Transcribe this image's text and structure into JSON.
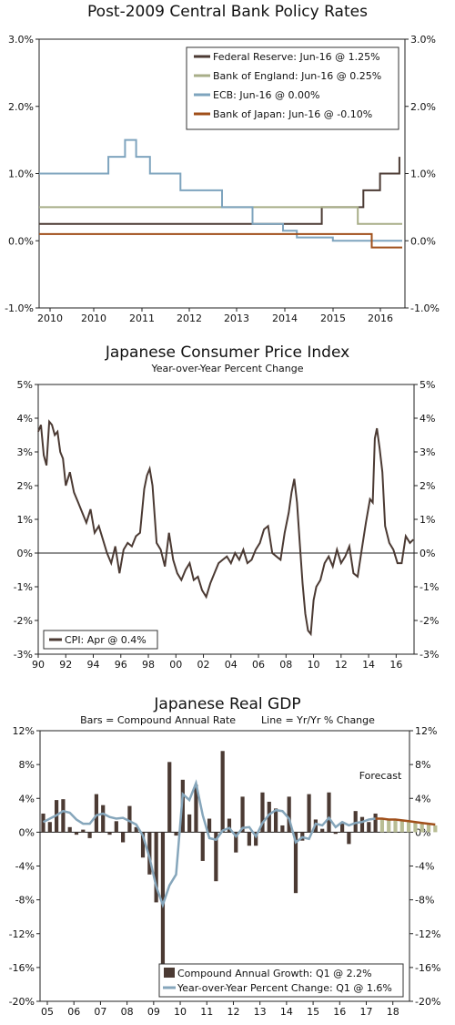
{
  "chart_data": [
    {
      "type": "line",
      "title": "Post-2009 Central Bank Policy Rates",
      "x_range": [
        2010,
        2016.6
      ],
      "x_ticks": [
        "2010",
        "2010",
        "2011",
        "2012",
        "2013",
        "2014",
        "2015",
        "2016"
      ],
      "ylim": [
        -1.0,
        3.0
      ],
      "y_ticks_left": [
        "3.0%",
        "2.0%",
        "1.0%",
        "0.0%",
        "-1.0%"
      ],
      "y_ticks_right": [
        "3.0%",
        "2.0%",
        "1.0%",
        "0.0%",
        "-1.0%"
      ],
      "legend_position": "top-right",
      "series": [
        {
          "name": "Federal Reserve: Jun-16 @ 1.25%",
          "color": "#4b3a33",
          "x": [
            2010,
            2015.1,
            2015.1,
            2015.55,
            2015.55,
            2015.85,
            2015.85,
            2016.15,
            2016.15,
            2016.45,
            2016.5,
            2016.5
          ],
          "values": [
            0.25,
            0.25,
            0.5,
            0.5,
            0.5,
            0.5,
            0.75,
            0.75,
            1.0,
            1.0,
            1.0,
            1.25
          ]
        },
        {
          "name": "Bank of England: Jun-16 @ 0.25%",
          "color": "#a8ae88",
          "x": [
            2010,
            2015.75,
            2015.75,
            2016.55
          ],
          "values": [
            0.5,
            0.5,
            0.25,
            0.25
          ]
        },
        {
          "name": "ECB: Jun-16 @ 0.00%",
          "color": "#7ea4be",
          "x": [
            2010,
            2011.25,
            2011.25,
            2011.55,
            2011.55,
            2011.75,
            2011.75,
            2012.0,
            2012.0,
            2012.55,
            2012.55,
            2013.3,
            2013.3,
            2013.85,
            2013.85,
            2014.4,
            2014.4,
            2014.65,
            2014.65,
            2015.3,
            2015.3,
            2016.55
          ],
          "values": [
            1.0,
            1.0,
            1.25,
            1.25,
            1.5,
            1.5,
            1.25,
            1.25,
            1.0,
            1.0,
            0.75,
            0.75,
            0.5,
            0.5,
            0.25,
            0.25,
            0.15,
            0.15,
            0.05,
            0.05,
            0.0,
            0.0
          ]
        },
        {
          "name": "Bank of Japan: Jun-16 @ -0.10%",
          "color": "#a04f1a",
          "x": [
            2010,
            2016.0,
            2016.0,
            2016.55
          ],
          "values": [
            0.1,
            0.1,
            -0.1,
            -0.1
          ]
        }
      ]
    },
    {
      "type": "line",
      "title": "Japanese Consumer Price Index",
      "subtitle": "Year-over-Year Percent Change",
      "x_range": [
        1990,
        2017.3
      ],
      "x_ticks": [
        "90",
        "92",
        "94",
        "96",
        "98",
        "00",
        "02",
        "04",
        "06",
        "08",
        "10",
        "12",
        "14",
        "16"
      ],
      "ylim": [
        -3,
        5
      ],
      "y_ticks_left": [
        "5%",
        "4%",
        "3%",
        "2%",
        "1%",
        "0%",
        "-1%",
        "-2%",
        "-3%"
      ],
      "y_ticks_right": [
        "5%",
        "4%",
        "3%",
        "2%",
        "1%",
        "0%",
        "-1%",
        "-2%",
        "-3%"
      ],
      "legend_position": "bottom-left",
      "series": [
        {
          "name": "CPI: Apr @ 0.4%",
          "color": "#4b3a33",
          "x": [
            1990,
            1990.2,
            1990.4,
            1990.6,
            1990.8,
            1991.0,
            1991.2,
            1991.4,
            1991.6,
            1991.8,
            1992.0,
            1992.3,
            1992.6,
            1992.9,
            1993.2,
            1993.5,
            1993.8,
            1994.1,
            1994.4,
            1994.7,
            1995.0,
            1995.3,
            1995.6,
            1995.9,
            1996.2,
            1996.5,
            1996.8,
            1997.1,
            1997.4,
            1997.7,
            1997.9,
            1998.1,
            1998.3,
            1998.6,
            1998.9,
            1999.2,
            1999.5,
            1999.8,
            2000.1,
            2000.4,
            2000.7,
            2001.0,
            2001.3,
            2001.6,
            2001.9,
            2002.2,
            2002.5,
            2002.8,
            2003.1,
            2003.4,
            2003.7,
            2004.0,
            2004.3,
            2004.6,
            2004.9,
            2005.2,
            2005.5,
            2005.8,
            2006.1,
            2006.4,
            2006.7,
            2007.0,
            2007.3,
            2007.6,
            2007.9,
            2008.2,
            2008.4,
            2008.6,
            2008.8,
            2009.0,
            2009.2,
            2009.4,
            2009.6,
            2009.8,
            2010.0,
            2010.2,
            2010.5,
            2010.8,
            2011.1,
            2011.4,
            2011.7,
            2012.0,
            2012.3,
            2012.6,
            2012.9,
            2013.2,
            2013.5,
            2013.8,
            2014.1,
            2014.3,
            2014.45,
            2014.6,
            2014.8,
            2015.0,
            2015.2,
            2015.5,
            2015.8,
            2016.1,
            2016.4,
            2016.7,
            2017.0,
            2017.25
          ],
          "values": [
            3.6,
            3.8,
            2.9,
            2.6,
            3.9,
            3.8,
            3.5,
            3.6,
            3.0,
            2.8,
            2.0,
            2.4,
            1.8,
            1.5,
            1.2,
            0.9,
            1.3,
            0.6,
            0.8,
            0.4,
            0.0,
            -0.3,
            0.2,
            -0.6,
            0.1,
            0.3,
            0.2,
            0.5,
            0.6,
            1.9,
            2.3,
            2.5,
            2.0,
            0.3,
            0.1,
            -0.4,
            0.6,
            -0.2,
            -0.6,
            -0.8,
            -0.5,
            -0.3,
            -0.8,
            -0.7,
            -1.1,
            -1.3,
            -0.9,
            -0.6,
            -0.3,
            -0.2,
            -0.1,
            -0.3,
            0.0,
            -0.2,
            0.1,
            -0.3,
            -0.2,
            0.1,
            0.3,
            0.7,
            0.8,
            0.0,
            -0.1,
            -0.2,
            0.6,
            1.2,
            1.8,
            2.2,
            1.5,
            0.3,
            -0.9,
            -1.8,
            -2.3,
            -2.4,
            -1.4,
            -1.0,
            -0.8,
            -0.3,
            -0.1,
            -0.4,
            0.1,
            -0.3,
            -0.1,
            0.2,
            -0.6,
            -0.7,
            0.1,
            0.9,
            1.6,
            1.5,
            3.4,
            3.7,
            3.1,
            2.4,
            0.8,
            0.3,
            0.1,
            -0.3,
            -0.3,
            0.5,
            0.3,
            0.4
          ]
        }
      ]
    },
    {
      "type": "bar",
      "title": "Japanese Real GDP",
      "subtitle": "Bars = Compound Annual Rate        Line = Yr/Yr % Change",
      "annotation": "Forecast",
      "x_range": [
        2005,
        2018.9
      ],
      "x_ticks": [
        "05",
        "06",
        "07",
        "08",
        "09",
        "10",
        "11",
        "12",
        "13",
        "14",
        "15",
        "16",
        "17",
        "18"
      ],
      "ylim": [
        -20,
        12
      ],
      "y_ticks_left": [
        "12%",
        "8%",
        "4%",
        "0%",
        "-4%",
        "-8%",
        "-12%",
        "-16%",
        "-20%"
      ],
      "y_ticks_right": [
        "12%",
        "8%",
        "4%",
        "0%",
        "-4%",
        "-8%",
        "-12%",
        "-16%",
        "-20%"
      ],
      "legend_position": "bottom-right",
      "bar_color": "#4b3a33",
      "forecast_bar_color": "#b9bd94",
      "line_color": "#86a6bb",
      "forecast_line_color": "#a04f1a",
      "series": [
        {
          "name": "Compound Annual Growth: Q1 @ 2.2%",
          "values": [
            2.2,
            1.2,
            3.8,
            3.9,
            0.6,
            -0.3,
            0.3,
            -0.7,
            4.5,
            3.2,
            -0.3,
            1.3,
            -1.2,
            3.1,
            0.6,
            -3.0,
            -5.0,
            -8.3,
            -18.0,
            8.3,
            -0.4,
            6.2,
            2.1,
            5.6,
            -3.4,
            1.6,
            -5.8,
            9.6,
            1.6,
            -2.4,
            4.2,
            -1.6,
            -1.6,
            4.7,
            3.6,
            2.8,
            0.8,
            4.2,
            -7.2,
            -1.0,
            4.5,
            1.5,
            0.4,
            4.7,
            -0.2,
            1.0,
            -1.4,
            2.5,
            1.8,
            1.2,
            2.2
          ],
          "forecast_values": [
            1.6,
            1.5,
            1.4,
            1.3,
            1.2,
            1.1,
            1.0,
            0.9,
            0.8
          ]
        },
        {
          "name": "Year-over-Year Percent Change: Q1 @ 1.6%",
          "values": [
            1.2,
            1.6,
            2.0,
            2.5,
            2.3,
            1.5,
            1.0,
            1.0,
            2.0,
            2.2,
            1.8,
            1.6,
            1.7,
            1.3,
            0.9,
            -0.4,
            -3.0,
            -6.4,
            -8.6,
            -6.3,
            -5.0,
            4.5,
            3.8,
            5.8,
            2.0,
            -0.7,
            -0.9,
            0.2,
            0.5,
            -0.5,
            0.5,
            0.6,
            -0.5,
            1.1,
            2.1,
            2.6,
            2.5,
            1.6,
            -1.2,
            -0.6,
            -0.8,
            1.0,
            0.8,
            1.7,
            0.6,
            1.2,
            0.8,
            1.1,
            1.2,
            1.5,
            1.6
          ],
          "forecast_values": [
            1.6,
            1.5,
            1.5,
            1.4,
            1.3,
            1.2,
            1.1,
            1.0,
            0.9
          ]
        }
      ]
    }
  ]
}
